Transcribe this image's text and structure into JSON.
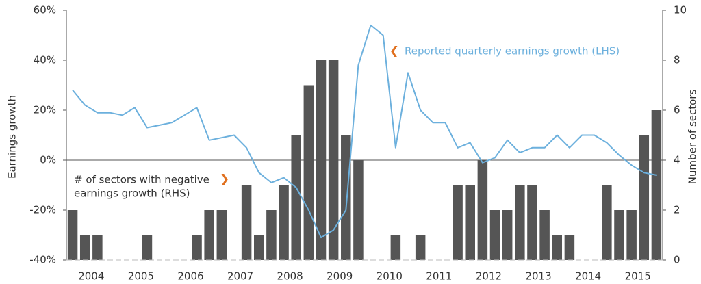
{
  "chart_data": {
    "type": "bar",
    "categories": [
      "2004",
      null,
      null,
      null,
      "2005",
      null,
      null,
      null,
      "2006",
      null,
      null,
      null,
      "2007",
      null,
      null,
      null,
      "2008",
      null,
      null,
      null,
      "2009",
      null,
      null,
      null,
      "2010",
      null,
      null,
      null,
      "2011",
      null,
      null,
      null,
      "2012",
      null,
      null,
      null,
      "2013",
      null,
      null,
      null,
      "2014",
      null,
      null,
      null,
      "2015",
      null,
      null,
      null
    ],
    "series": [
      {
        "name": [
          "# of sectors with negative",
          "earnings growth (RHS)"
        ],
        "type": "bar",
        "axis": "y2",
        "color": "#555555",
        "values": [
          2,
          1,
          1,
          0,
          0,
          0,
          1,
          0,
          0,
          0,
          1,
          2,
          2,
          0,
          3,
          1,
          2,
          3,
          5,
          7,
          8,
          8,
          5,
          4,
          0,
          0,
          1,
          0,
          1,
          0,
          0,
          3,
          3,
          4,
          2,
          2,
          3,
          3,
          2,
          1,
          1,
          0,
          0,
          3,
          2,
          2,
          5,
          6
        ]
      },
      {
        "name": "Reported quarterly earnings growth (LHS)",
        "type": "line",
        "axis": "y",
        "color": "#6cb0dd",
        "values": [
          28,
          22,
          19,
          19,
          18,
          21,
          13,
          14,
          15,
          18,
          21,
          8,
          9,
          10,
          5,
          -5,
          -9,
          -7,
          -11,
          -20,
          -31,
          -28,
          -20,
          38,
          54,
          50,
          5,
          35,
          20,
          15,
          15,
          5,
          7,
          -1,
          1,
          8,
          3,
          5,
          5,
          10,
          5,
          10,
          10,
          7,
          2,
          -2,
          -5,
          -6
        ]
      }
    ],
    "ylabel": "Earnings growth",
    "y2label": "Number of sectors",
    "ylim": [
      -40,
      60
    ],
    "yticks": [
      {
        "value": -40,
        "label": "-40%"
      },
      {
        "value": -20,
        "label": "-20%"
      },
      {
        "value": 0,
        "label": "0%"
      },
      {
        "value": 20,
        "label": "20%"
      },
      {
        "value": 40,
        "label": "40%"
      },
      {
        "value": 60,
        "label": "60%"
      }
    ],
    "y2lim": [
      0,
      10
    ],
    "y2ticks": [
      0,
      2,
      4,
      6,
      8,
      10
    ]
  }
}
